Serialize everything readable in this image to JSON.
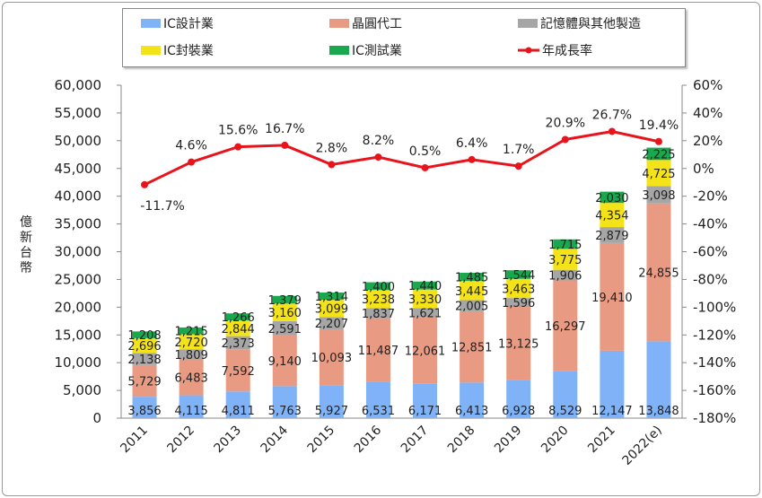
{
  "chart_data": {
    "type": "bar",
    "stacked": true,
    "categories": [
      "2011",
      "2012",
      "2013",
      "2014",
      "2015",
      "2016",
      "2017",
      "2018",
      "2019",
      "2020",
      "2021",
      "2022(e)"
    ],
    "series": [
      {
        "name": "IC設計業",
        "color": "#7fb2f6",
        "values": [
          3856,
          4115,
          4811,
          5763,
          5927,
          6531,
          6171,
          6413,
          6928,
          8529,
          12147,
          13848
        ]
      },
      {
        "name": "晶圓代工",
        "color": "#e89a82",
        "values": [
          5729,
          6483,
          7592,
          9140,
          10093,
          11487,
          12061,
          12851,
          13125,
          16297,
          19410,
          24855
        ]
      },
      {
        "name": "記憶體與其他製造",
        "color": "#a6a6a6",
        "values": [
          2138,
          1809,
          2373,
          2591,
          2207,
          1837,
          1621,
          2005,
          1596,
          1906,
          2879,
          3098
        ]
      },
      {
        "name": "IC封裝業",
        "color": "#f5e31a",
        "values": [
          2696,
          2720,
          2844,
          3160,
          3099,
          3238,
          3330,
          3445,
          3463,
          3775,
          4354,
          4725
        ]
      },
      {
        "name": "IC測試業",
        "color": "#1aa84f",
        "values": [
          1208,
          1215,
          1266,
          1379,
          1314,
          1400,
          1440,
          1485,
          1544,
          1715,
          2030,
          2225
        ]
      }
    ],
    "line_series": {
      "name": "年成長率",
      "color": "#e8141c",
      "axis": "right",
      "values": [
        -11.7,
        4.6,
        15.6,
        16.7,
        2.8,
        8.2,
        0.5,
        6.4,
        1.7,
        20.9,
        26.7,
        19.4
      ],
      "labels": [
        "-11.7%",
        "4.6%",
        "15.6%",
        "16.7%",
        "2.8%",
        "8.2%",
        "0.5%",
        "6.4%",
        "1.7%",
        "20.9%",
        "26.7%",
        "19.4%"
      ]
    },
    "ylabel": "億新台幣",
    "ylim": [
      0,
      60000
    ],
    "y_ticks": [
      "0",
      "5,000",
      "10,000",
      "15,000",
      "20,000",
      "25,000",
      "30,000",
      "35,000",
      "40,000",
      "45,000",
      "50,000",
      "55,000",
      "60,000"
    ],
    "y2lim": [
      -180,
      60
    ],
    "y2_ticks": [
      "-180%",
      "-160%",
      "-140%",
      "-120%",
      "-100%",
      "-80%",
      "-60%",
      "-40%",
      "-20%",
      "0%",
      "20%",
      "40%",
      "60%"
    ],
    "legend_position": "top",
    "grid": false
  }
}
